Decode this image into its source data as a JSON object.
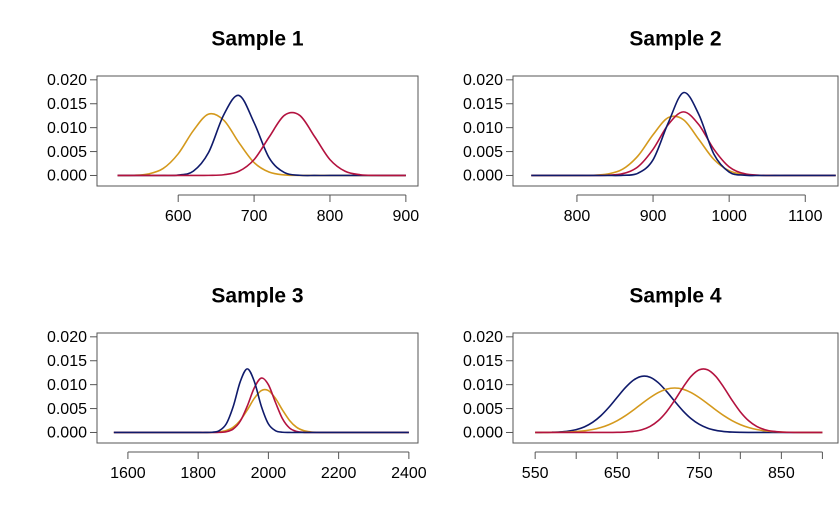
{
  "chart_data": [
    {
      "type": "line",
      "title": "Sample 1",
      "x": [
        520,
        540,
        560,
        580,
        600,
        620,
        640,
        660,
        680,
        700,
        720,
        740,
        760,
        780,
        800,
        820,
        840,
        860,
        880,
        900
      ],
      "series": [
        {
          "color": "#d4991c",
          "values": [
            0,
            4e-05,
            0.0003,
            0.00144,
            0.00453,
            0.00939,
            0.01283,
            0.01156,
            0.00688,
            0.00269,
            0.00069,
            0.00012,
            1e-05,
            0,
            0,
            0,
            0,
            0,
            0,
            0
          ]
        },
        {
          "color": "#0f1a6b",
          "values": [
            0,
            0,
            0,
            0,
            9e-05,
            0.00091,
            0.0048,
            0.01268,
            0.01674,
            0.01104,
            0.00364,
            0.0006,
            5e-05,
            0,
            0,
            0,
            0,
            0,
            0,
            0
          ]
        },
        {
          "color": "#b3123f",
          "values": [
            0,
            0,
            0,
            0,
            0,
            0,
            2e-05,
            0.00015,
            0.00088,
            0.00332,
            0.00807,
            0.01258,
            0.01258,
            0.00807,
            0.00332,
            0.00088,
            0.00015,
            2e-05,
            0,
            0
          ]
        }
      ],
      "xlim": [
        493,
        916
      ],
      "ylim": [
        -0.0022,
        0.0208
      ],
      "xticks": [
        600,
        700,
        800,
        900
      ],
      "yticks": [
        {
          "value": 0,
          "label": "0.000"
        },
        0.005,
        {
          "value": 0.01,
          "label": "0.010"
        },
        0.015,
        {
          "value": 0.02,
          "label": "0.020"
        }
      ]
    },
    {
      "type": "line",
      "title": "Sample 2",
      "x": [
        740,
        760,
        780,
        800,
        820,
        840,
        860,
        880,
        900,
        920,
        940,
        960,
        980,
        1000,
        1020,
        1040,
        1060,
        1080,
        1100,
        1120,
        1140
      ],
      "series": [
        {
          "color": "#d4991c",
          "values": [
            0,
            0,
            0,
            0,
            4e-05,
            0.00029,
            0.00131,
            0.00406,
            0.00852,
            0.01211,
            0.01165,
            0.00758,
            0.00334,
            0.001,
            0.0002,
            3e-05,
            0,
            0,
            0,
            0,
            0
          ]
        },
        {
          "color": "#b3123f",
          "values": [
            0,
            0,
            0,
            0,
            0,
            5e-05,
            0.00038,
            0.0018,
            0.00547,
            0.01065,
            0.0133,
            0.01065,
            0.00547,
            0.0018,
            0.00038,
            5e-05,
            0,
            0,
            0,
            0,
            0
          ]
        },
        {
          "color": "#0f1a6b",
          "values": [
            0,
            0,
            0,
            0,
            0,
            0,
            3e-05,
            0.00046,
            0.00328,
            0.01101,
            0.01733,
            0.01281,
            0.00444,
            0.00072,
            6e-05,
            0,
            0,
            0,
            0,
            0,
            0
          ]
        }
      ],
      "xlim": [
        716,
        1143
      ],
      "ylim": [
        -0.0022,
        0.0208
      ],
      "xticks": [
        800,
        900,
        1000,
        1100
      ],
      "yticks": [
        {
          "value": 0,
          "label": "0.000"
        },
        0.005,
        {
          "value": 0.01,
          "label": "0.010"
        },
        0.015,
        {
          "value": 0.02,
          "label": "0.020"
        }
      ]
    },
    {
      "type": "line",
      "title": "Sample 3",
      "x": [
        1560,
        1580,
        1600,
        1620,
        1640,
        1660,
        1680,
        1700,
        1720,
        1740,
        1760,
        1780,
        1800,
        1820,
        1840,
        1860,
        1880,
        1900,
        1920,
        1940,
        1960,
        1980,
        2000,
        2020,
        2040,
        2060,
        2080,
        2100,
        2120,
        2140,
        2160,
        2180,
        2200,
        2220,
        2240,
        2260,
        2280,
        2300,
        2320,
        2340,
        2360,
        2380,
        2400
      ],
      "series": [
        {
          "color": "#d4991c",
          "values": [
            0,
            0,
            0,
            0,
            0,
            0,
            0,
            0,
            0,
            0,
            0,
            0,
            0,
            0,
            3e-05,
            0.00012,
            0.0004,
            0.00111,
            0.00254,
            0.00472,
            0.00714,
            0.00877,
            0.00877,
            0.00714,
            0.00472,
            0.00254,
            0.00111,
            0.0004,
            0.00012,
            3e-05,
            0,
            0,
            0,
            0,
            0,
            0,
            0,
            0,
            0,
            0,
            0,
            0,
            0
          ]
        },
        {
          "color": "#b3123f",
          "values": [
            0,
            0,
            0,
            0,
            0,
            0,
            0,
            0,
            0,
            0,
            0,
            0,
            0,
            0,
            0,
            3e-05,
            0.00016,
            0.00074,
            0.00237,
            0.00555,
            0.00935,
            0.01138,
            0.00999,
            0.00632,
            0.00289,
            0.00095,
            0.00023,
            4e-05,
            0,
            0,
            0,
            0,
            0,
            0,
            0,
            0,
            0,
            0,
            0,
            0,
            0,
            0,
            0
          ]
        },
        {
          "color": "#0f1a6b",
          "values": [
            0,
            0,
            0,
            0,
            0,
            0,
            0,
            0,
            0,
            0,
            0,
            0,
            0,
            0,
            5e-05,
            0.00038,
            0.0018,
            0.00547,
            0.01065,
            0.0133,
            0.01065,
            0.00547,
            0.0018,
            0.00038,
            5e-05,
            0,
            0,
            0,
            0,
            0,
            0,
            0,
            0,
            0,
            0,
            0,
            0,
            0,
            0,
            0,
            0,
            0,
            0
          ]
        }
      ],
      "xlim": [
        1512,
        2426
      ],
      "ylim": [
        -0.0022,
        0.0208
      ],
      "xticks": [
        1600,
        1800,
        2000,
        2200,
        2400
      ],
      "yticks": [
        {
          "value": 0,
          "label": "0.000"
        },
        0.005,
        {
          "value": 0.01,
          "label": "0.010"
        },
        0.015,
        {
          "value": 0.02,
          "label": "0.020"
        }
      ]
    },
    {
      "type": "line",
      "title": "Sample 4",
      "x": [
        550,
        560,
        570,
        580,
        590,
        600,
        610,
        620,
        630,
        640,
        650,
        660,
        670,
        680,
        690,
        700,
        710,
        720,
        730,
        740,
        750,
        760,
        770,
        780,
        790,
        800,
        810,
        820,
        830,
        840,
        850,
        860,
        870,
        880,
        890,
        900
      ],
      "series": [
        {
          "color": "#0f1a6b",
          "values": [
            1e-05,
            2e-05,
            5e-05,
            0.00012,
            0.00028,
            0.0006,
            0.00118,
            0.00212,
            0.0035,
            0.0053,
            0.00737,
            0.00939,
            0.01097,
            0.01175,
            0.01155,
            0.01041,
            0.00861,
            0.00653,
            0.00454,
            0.0029,
            0.0017,
            0.00091,
            0.00045,
            0.0002,
            8e-05,
            3e-05,
            1e-05,
            0,
            0,
            0,
            0,
            0,
            0,
            0,
            0,
            0
          ]
        },
        {
          "color": "#d4991c",
          "values": [
            0,
            1e-05,
            2e-05,
            5e-05,
            0.0001,
            0.00019,
            0.00035,
            0.00062,
            0.00104,
            0.00165,
            0.00247,
            0.00351,
            0.00473,
            0.00604,
            0.00729,
            0.00835,
            0.00905,
            0.0093,
            0.00905,
            0.00835,
            0.00729,
            0.00604,
            0.00473,
            0.00351,
            0.00247,
            0.00165,
            0.00104,
            0.00062,
            0.00035,
            0.00019,
            0.0001,
            5e-05,
            2e-05,
            1e-05,
            0,
            0
          ]
        },
        {
          "color": "#b3123f",
          "values": [
            0,
            0,
            0,
            0,
            0,
            0,
            0,
            0,
            0,
            1e-05,
            3e-05,
            9e-05,
            0.00024,
            0.00058,
            0.00127,
            0.00248,
            0.00432,
            0.00673,
            0.0094,
            0.01174,
            0.01312,
            0.01312,
            0.01174,
            0.0094,
            0.00673,
            0.00432,
            0.00248,
            0.00127,
            0.00058,
            0.00024,
            9e-05,
            3e-05,
            1e-05,
            0,
            0,
            0
          ]
        }
      ],
      "xlim": [
        523,
        919
      ],
      "ylim": [
        -0.0022,
        0.0208
      ],
      "xticks": [
        550,
        {
          "value": 600,
          "label": null
        },
        650,
        {
          "value": 700,
          "label": null
        },
        750,
        {
          "value": 800,
          "label": null
        },
        850,
        {
          "value": 900,
          "label": null
        }
      ],
      "yticks": [
        {
          "value": 0,
          "label": "0.000"
        },
        0.005,
        {
          "value": 0.01,
          "label": "0.010"
        },
        0.015,
        {
          "value": 0.02,
          "label": "0.020"
        }
      ]
    }
  ]
}
